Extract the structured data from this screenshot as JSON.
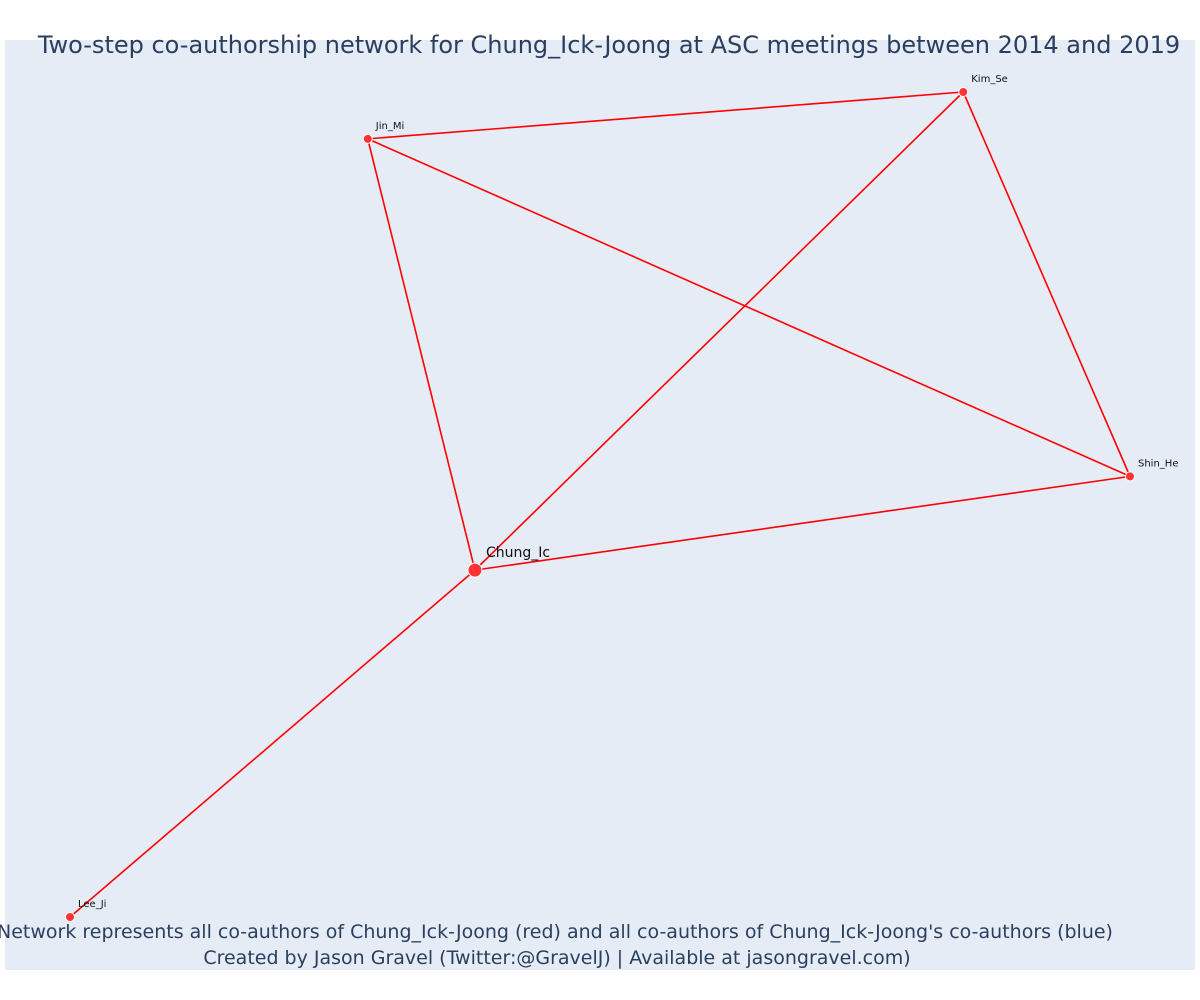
{
  "chart_data": {
    "type": "network",
    "title": "Two-step co-authorship network for Chung_Ick-Joong at ASC meetings between 2014 and 2019",
    "caption_line1": "Network represents all co-authors of Chung_Ick-Joong (red) and all co-authors of Chung_Ick-Joong's co-authors (blue)",
    "caption_line2": "Created by Jason Gravel (Twitter:@GravelJ) | Available at jasongravel.com)",
    "colors": {
      "plot_bg": "#e5ecf6",
      "edge": "#ff0000",
      "node": "#ff3333",
      "node_outline": "#ffffff",
      "text": "#2a3f5f"
    },
    "nodes": [
      {
        "id": "Chung_Ic",
        "label": "Chung_Ic",
        "x": 0.4,
        "y": 0.43,
        "size": "large"
      },
      {
        "id": "Jin_Mi",
        "label": "Jin_Mi",
        "x": 0.31,
        "y": 0.89,
        "size": "small"
      },
      {
        "id": "Kim_Se",
        "label": "Kim_Se",
        "x": 0.81,
        "y": 0.94,
        "size": "small"
      },
      {
        "id": "Shin_He",
        "label": "Shin_He",
        "x": 0.95,
        "y": 0.53,
        "size": "small"
      },
      {
        "id": "Lee_Ji",
        "label": "Lee_Ji",
        "x": 0.06,
        "y": 0.06,
        "size": "small"
      }
    ],
    "edges": [
      [
        "Chung_Ic",
        "Jin_Mi"
      ],
      [
        "Chung_Ic",
        "Kim_Se"
      ],
      [
        "Chung_Ic",
        "Shin_He"
      ],
      [
        "Chung_Ic",
        "Lee_Ji"
      ],
      [
        "Jin_Mi",
        "Kim_Se"
      ],
      [
        "Jin_Mi",
        "Shin_He"
      ],
      [
        "Kim_Se",
        "Shin_He"
      ]
    ]
  }
}
